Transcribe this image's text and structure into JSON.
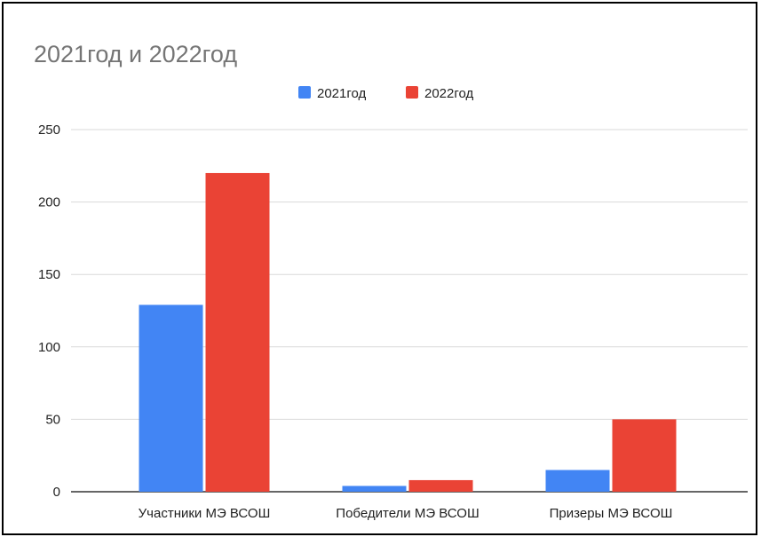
{
  "chart_data": {
    "type": "bar",
    "title": "2021год и 2022год",
    "xlabel": "",
    "ylabel": "",
    "categories": [
      "Участники МЭ ВСОШ",
      "Победители МЭ ВСОШ",
      "Призеры МЭ  ВСОШ"
    ],
    "series": [
      {
        "name": "2021год",
        "values": [
          129,
          4,
          15
        ],
        "color": "#4285F4"
      },
      {
        "name": "2022год",
        "values": [
          220,
          8,
          50
        ],
        "color": "#EA4335"
      }
    ],
    "ylim": [
      0,
      250
    ],
    "yticks": [
      0,
      50,
      100,
      150,
      200,
      250
    ],
    "grid": true,
    "legend_position": "top"
  }
}
